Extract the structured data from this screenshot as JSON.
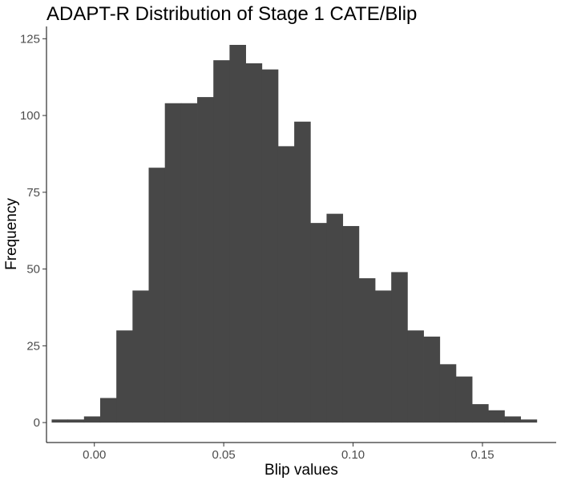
{
  "chart_data": {
    "type": "bar",
    "subtype": "histogram",
    "title": "ADAPT-R Distribution of Stage 1 CATE/Blip",
    "xlabel": "Blip values",
    "ylabel": "Frequency",
    "xlim": [
      -0.0185,
      0.1785
    ],
    "ylim": [
      -6.5,
      129
    ],
    "x_ticks": [
      0.0,
      0.05,
      0.1,
      0.15
    ],
    "x_tick_labels": [
      "0.00",
      "0.05",
      "0.10",
      "0.15"
    ],
    "y_ticks": [
      0,
      25,
      50,
      75,
      100,
      125
    ],
    "y_tick_labels": [
      "0",
      "25",
      "50",
      "75",
      "100",
      "125"
    ],
    "grid": false,
    "bar_color": "#474747",
    "bin_start": -0.0165,
    "bin_width": 0.00625,
    "values": [
      1,
      1,
      2,
      8,
      30,
      43,
      83,
      104,
      104,
      106,
      118,
      123,
      117,
      115,
      90,
      98,
      65,
      68,
      64,
      47,
      43,
      49,
      30,
      28,
      19,
      15,
      6,
      4,
      2,
      1
    ]
  }
}
